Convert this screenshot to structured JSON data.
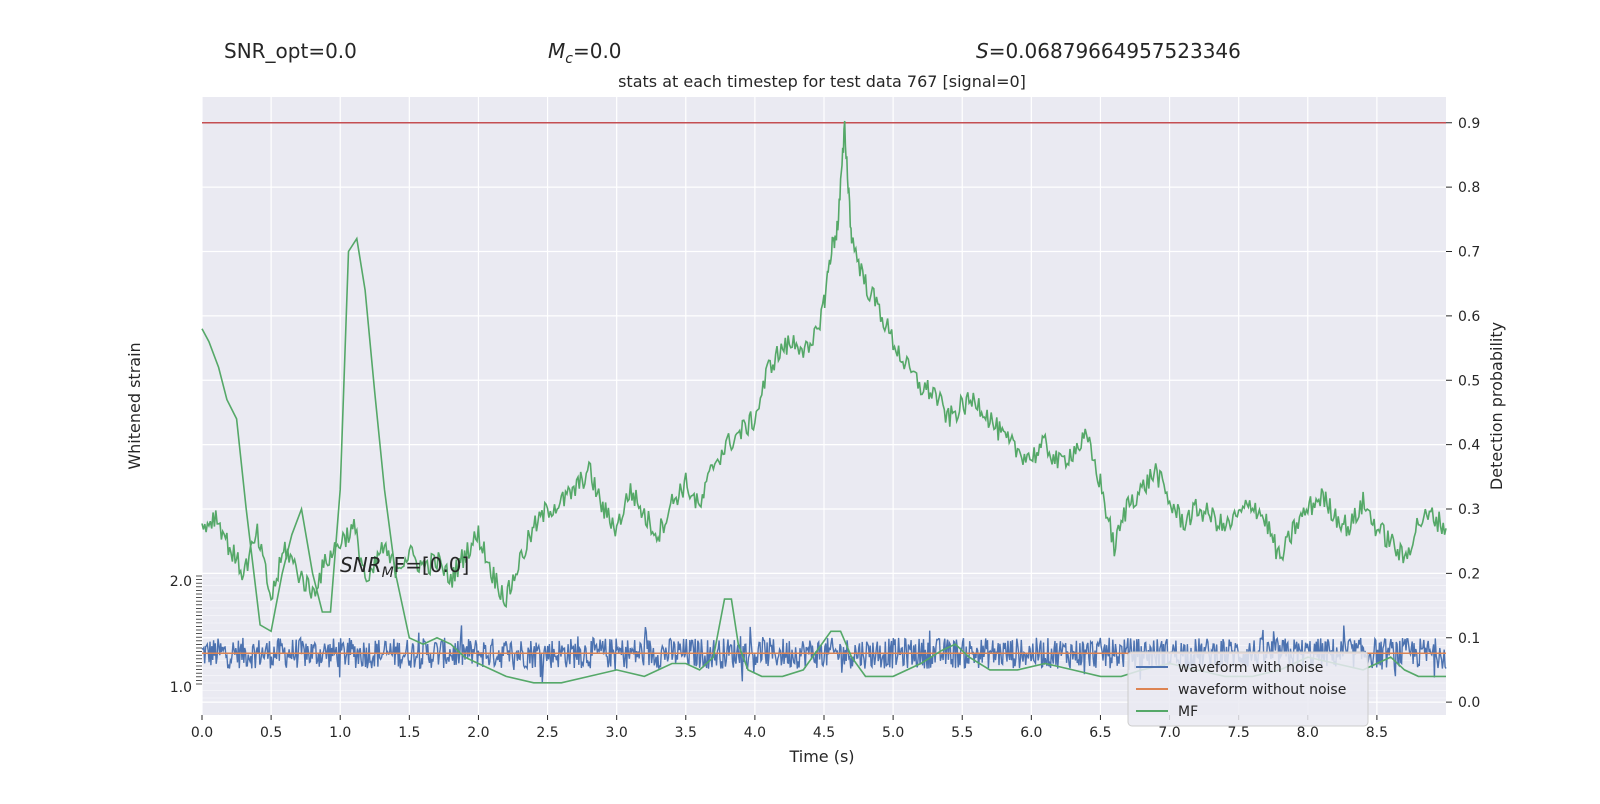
{
  "header": {
    "snr_opt": "SNR_opt=0.0",
    "mc_symbol": "M",
    "mc_sub": "c",
    "mc_value": "=0.0",
    "s_symbol": "S",
    "s_value": "=0.06879664957523346"
  },
  "chart_data": {
    "type": "line",
    "title": "stats at each timestep for test data 767 [signal=0]",
    "xlabel": "Time (s)",
    "ylabel_left": "Whitened strain",
    "ylabel_right": "Detection probability",
    "x_ticks": [
      "0.0",
      "0.5",
      "1.0",
      "1.5",
      "2.0",
      "2.5",
      "3.0",
      "3.5",
      "4.0",
      "4.5",
      "5.0",
      "5.5",
      "6.0",
      "6.5",
      "7.0",
      "7.5",
      "8.0",
      "8.5"
    ],
    "right_ticks": [
      "0.0",
      "0.1",
      "0.2",
      "0.3",
      "0.4",
      "0.5",
      "0.6",
      "0.7",
      "0.8",
      "0.9"
    ],
    "left_ticks_top": "2.0",
    "left_ticks_bottom": "1.0",
    "xlim": [
      0.0,
      9.0
    ],
    "ylim_right": [
      -0.02,
      0.94
    ],
    "threshold": {
      "value": 0.9,
      "color": "#c44e52"
    },
    "annotation": {
      "prefix": "SNR",
      "sub": "M",
      "suffix": "F=[0.0]"
    },
    "grid": true,
    "legend": {
      "position": "lower right",
      "entries": [
        {
          "label": "waveform with noise",
          "color": "#4c72b0"
        },
        {
          "label": "waveform without noise",
          "color": "#dd8452"
        },
        {
          "label": "MF",
          "color": "#55a868"
        }
      ]
    },
    "series": [
      {
        "name": "MF",
        "color": "#55a868",
        "x": [
          0.0,
          0.05,
          0.12,
          0.18,
          0.25,
          0.32,
          0.42,
          0.5,
          0.58,
          0.65,
          0.72,
          0.8,
          0.87,
          0.93,
          1.0,
          1.06,
          1.12,
          1.18,
          1.25,
          1.32,
          1.4,
          1.5,
          1.6,
          1.7,
          1.8,
          1.9,
          2.0,
          2.2,
          2.4,
          2.6,
          2.8,
          3.0,
          3.2,
          3.4,
          3.5,
          3.6,
          3.7,
          3.78,
          3.83,
          3.88,
          3.95,
          4.05,
          4.2,
          4.35,
          4.45,
          4.55,
          4.62,
          4.7,
          4.8,
          5.0,
          5.2,
          5.35,
          5.45,
          5.55,
          5.7,
          5.9,
          6.1,
          6.3,
          6.5,
          6.65,
          6.8,
          7.0,
          7.2,
          7.4,
          7.6,
          7.8,
          8.0,
          8.2,
          8.4,
          8.5,
          8.6,
          8.7,
          8.8,
          9.0
        ],
        "y": [
          0.58,
          0.56,
          0.52,
          0.47,
          0.44,
          0.3,
          0.12,
          0.11,
          0.2,
          0.26,
          0.3,
          0.2,
          0.14,
          0.14,
          0.33,
          0.7,
          0.72,
          0.64,
          0.48,
          0.33,
          0.2,
          0.1,
          0.09,
          0.1,
          0.09,
          0.07,
          0.06,
          0.04,
          0.03,
          0.03,
          0.04,
          0.05,
          0.04,
          0.06,
          0.06,
          0.05,
          0.07,
          0.16,
          0.16,
          0.09,
          0.05,
          0.04,
          0.04,
          0.05,
          0.08,
          0.11,
          0.11,
          0.07,
          0.04,
          0.04,
          0.06,
          0.08,
          0.09,
          0.07,
          0.05,
          0.05,
          0.06,
          0.05,
          0.04,
          0.04,
          0.05,
          0.06,
          0.05,
          0.04,
          0.04,
          0.05,
          0.07,
          0.06,
          0.05,
          0.06,
          0.07,
          0.05,
          0.04,
          0.04
        ]
      },
      {
        "name": "Detection probability",
        "color": "#55a868",
        "x": [
          0.0,
          0.1,
          0.2,
          0.3,
          0.4,
          0.5,
          0.6,
          0.7,
          0.8,
          0.9,
          1.0,
          1.1,
          1.2,
          1.3,
          1.4,
          1.5,
          1.6,
          1.7,
          1.8,
          1.9,
          2.0,
          2.1,
          2.2,
          2.3,
          2.4,
          2.5,
          2.6,
          2.7,
          2.8,
          2.9,
          3.0,
          3.1,
          3.2,
          3.3,
          3.4,
          3.5,
          3.6,
          3.7,
          3.8,
          3.9,
          4.0,
          4.1,
          4.2,
          4.3,
          4.4,
          4.5,
          4.55,
          4.6,
          4.65,
          4.7,
          4.8,
          4.9,
          5.0,
          5.1,
          5.2,
          5.3,
          5.4,
          5.5,
          5.6,
          5.7,
          5.8,
          5.9,
          6.0,
          6.1,
          6.2,
          6.3,
          6.4,
          6.5,
          6.6,
          6.7,
          6.8,
          6.9,
          7.0,
          7.1,
          7.2,
          7.3,
          7.4,
          7.5,
          7.6,
          7.7,
          7.8,
          7.9,
          8.0,
          8.1,
          8.2,
          8.3,
          8.4,
          8.5,
          8.6,
          8.7,
          8.8,
          8.9,
          9.0
        ],
        "y": [
          0.27,
          0.29,
          0.24,
          0.2,
          0.26,
          0.16,
          0.24,
          0.2,
          0.17,
          0.22,
          0.25,
          0.27,
          0.18,
          0.24,
          0.21,
          0.23,
          0.21,
          0.22,
          0.19,
          0.23,
          0.26,
          0.2,
          0.16,
          0.22,
          0.27,
          0.3,
          0.31,
          0.33,
          0.36,
          0.3,
          0.27,
          0.33,
          0.29,
          0.26,
          0.31,
          0.34,
          0.3,
          0.37,
          0.4,
          0.42,
          0.44,
          0.52,
          0.55,
          0.56,
          0.54,
          0.62,
          0.7,
          0.74,
          0.89,
          0.72,
          0.65,
          0.61,
          0.56,
          0.52,
          0.49,
          0.48,
          0.44,
          0.46,
          0.47,
          0.44,
          0.41,
          0.39,
          0.38,
          0.4,
          0.37,
          0.39,
          0.41,
          0.34,
          0.24,
          0.31,
          0.33,
          0.36,
          0.31,
          0.28,
          0.3,
          0.29,
          0.27,
          0.29,
          0.31,
          0.28,
          0.22,
          0.27,
          0.3,
          0.32,
          0.29,
          0.27,
          0.31,
          0.27,
          0.25,
          0.22,
          0.28,
          0.29,
          0.27
        ]
      }
    ],
    "noise_band": {
      "name": "waveform with noise",
      "color": "#4c72b0",
      "center": 0.076,
      "half_width": 0.024,
      "spike_max": 0.047
    },
    "clean_waveform": {
      "name": "waveform without noise",
      "color": "#dd8452",
      "value": 0.076
    }
  }
}
